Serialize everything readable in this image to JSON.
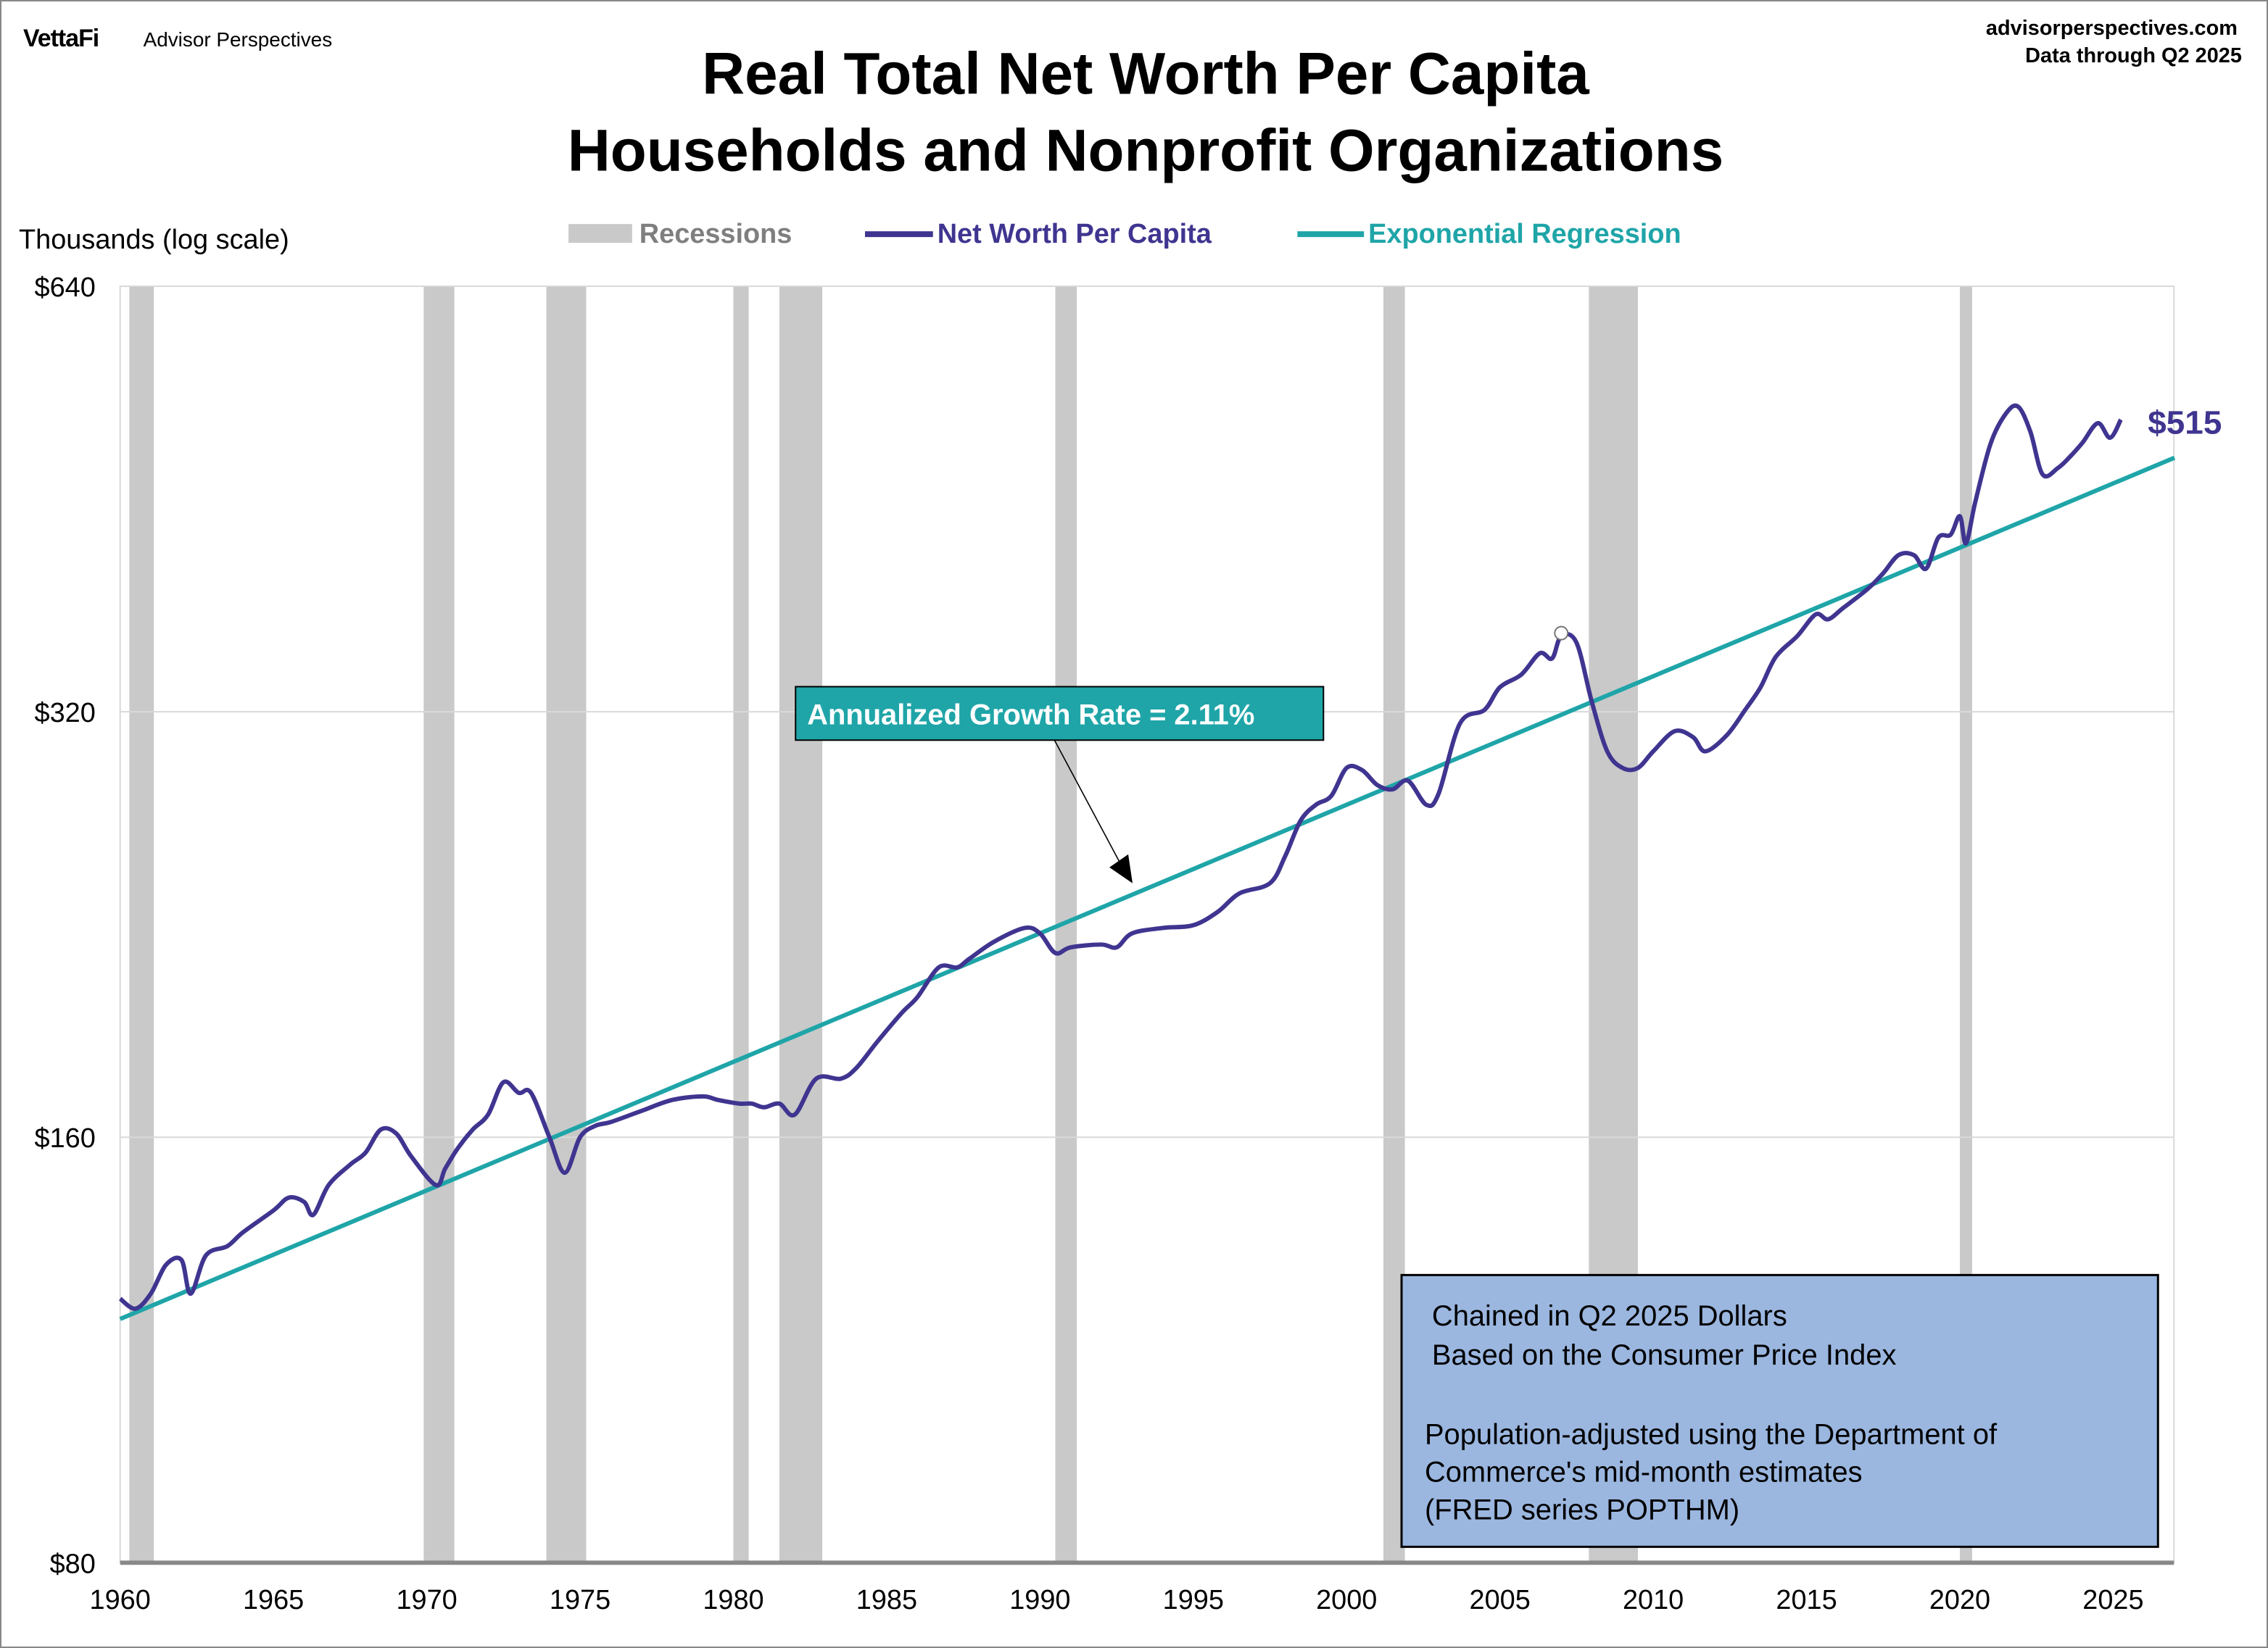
{
  "header": {
    "brand": "VettaFi",
    "brand_sub": "Advisor Perspectives",
    "site": "advisorperspectives.com",
    "data_through": "Data through Q2 2025"
  },
  "chart_data": {
    "type": "line",
    "title": "Real Total Net Worth Per Capita",
    "subtitle": "Households and Nonprofit Organizations",
    "ylabel": "Thousands (log scale)",
    "y_scale": "log2",
    "ylim": [
      80,
      640
    ],
    "y_ticks": [
      80,
      160,
      320,
      640
    ],
    "y_tick_labels": [
      "$80",
      "$160",
      "$320",
      "$640"
    ],
    "xlim": [
      1960,
      2027
    ],
    "x_ticks": [
      1960,
      1965,
      1970,
      1975,
      1980,
      1985,
      1990,
      1995,
      2000,
      2005,
      2010,
      2015,
      2020,
      2025
    ],
    "x_tick_labels": [
      "1960",
      "1965",
      "1970",
      "1975",
      "1980",
      "1985",
      "1990",
      "1995",
      "2000",
      "2005",
      "2010",
      "2015",
      "2020",
      "2025"
    ],
    "grid": "horizontal",
    "legend": {
      "placement": "top",
      "items": [
        {
          "label": "Recessions",
          "color": "#c9c9c9"
        },
        {
          "label": "Net Worth Per Capita",
          "color": "#3f3590"
        },
        {
          "label": "Exponential Regression",
          "color": "#1fa5a8"
        }
      ]
    },
    "recessions": [
      [
        1960.3,
        1961.1
      ],
      [
        1969.9,
        1970.9
      ],
      [
        1973.9,
        1975.2
      ],
      [
        1980.0,
        1980.5
      ],
      [
        1981.5,
        1982.9
      ],
      [
        1990.5,
        1991.2
      ],
      [
        2001.2,
        2001.9
      ],
      [
        2007.9,
        2009.5
      ],
      [
        2020.0,
        2020.4
      ]
    ],
    "series": [
      {
        "name": "Net Worth Per Capita",
        "color": "#3f3590",
        "x": [
          1960.0,
          1960.5,
          1961.0,
          1961.5,
          1962.0,
          1962.3,
          1962.8,
          1963.5,
          1964.0,
          1965.0,
          1965.5,
          1966.0,
          1966.3,
          1966.8,
          1967.5,
          1968.0,
          1968.5,
          1969.0,
          1969.5,
          1970.3,
          1970.6,
          1971.0,
          1971.5,
          1972.0,
          1972.5,
          1973.0,
          1973.4,
          1974.0,
          1974.5,
          1975.0,
          1975.5,
          1976.0,
          1977.0,
          1978.0,
          1979.0,
          1979.5,
          1980.2,
          1980.6,
          1981.0,
          1981.5,
          1982.0,
          1982.7,
          1983.5,
          1984.0,
          1984.7,
          1985.5,
          1986.0,
          1986.7,
          1987.3,
          1987.7,
          1988.5,
          1989.5,
          1990.0,
          1990.5,
          1991.0,
          1992.0,
          1992.5,
          1993.0,
          1994.0,
          1995.0,
          1995.8,
          1996.5,
          1997.5,
          1998.0,
          1998.5,
          1999.0,
          1999.5,
          2000.0,
          2000.5,
          2001.0,
          2001.5,
          2002.0,
          2002.6,
          2003.0,
          2003.7,
          2004.5,
          2005.0,
          2005.7,
          2006.3,
          2006.7,
          2007.0,
          2007.5,
          2008.0,
          2008.5,
          2009.0,
          2009.5,
          2010.0,
          2010.7,
          2011.3,
          2011.7,
          2012.4,
          2013.0,
          2013.5,
          2014.0,
          2014.7,
          2015.3,
          2015.7,
          2016.2,
          2017.0,
          2017.5,
          2018.0,
          2018.5,
          2018.9,
          2019.3,
          2019.7,
          2020.0,
          2020.2,
          2020.5,
          2021.0,
          2021.5,
          2021.9,
          2022.3,
          2022.7,
          2023.2,
          2023.6,
          2024.0,
          2024.5,
          2024.9,
          2025.25
        ],
        "values": [
          123,
          121,
          124,
          130,
          131,
          124,
          132,
          134,
          137,
          142,
          145,
          144,
          141,
          148,
          153,
          156,
          162,
          161,
          155,
          148,
          152,
          157,
          162,
          166,
          175,
          172,
          172,
          160,
          151,
          160,
          163,
          164,
          167,
          170,
          171,
          170,
          169,
          169,
          168,
          169,
          166,
          176,
          176,
          179,
          187,
          196,
          201,
          211,
          211,
          214,
          220,
          225,
          223,
          216,
          218,
          219,
          218,
          223,
          225,
          226,
          231,
          238,
          242,
          253,
          268,
          275,
          279,
          292,
          291,
          284,
          282,
          286,
          275,
          280,
          314,
          321,
          333,
          340,
          352,
          349,
          362,
          358,
          325,
          300,
          292,
          292,
          300,
          310,
          307,
          300,
          308,
          321,
          333,
          350,
          362,
          375,
          372,
          379,
          391,
          401,
          413,
          413,
          404,
          425,
          427,
          440,
          421,
          450,
          495,
          520,
          526,
          505,
          471,
          476,
          485,
          496,
          512,
          500,
          515
        ]
      },
      {
        "name": "Exponential Regression",
        "color": "#1fa5a8",
        "x": [
          1960,
          2027
        ],
        "values": [
          119,
          484
        ]
      }
    ],
    "annotations": {
      "last_value_label": "$515",
      "growth_label": "Annualized Growth Rate = 2.11%",
      "note_lines_1": [
        "Chained in Q2 2025 Dollars",
        "Based on the Consumer Price Index"
      ],
      "note_lines_2": [
        "Population-adjusted using the Department of",
        "Commerce's mid-month estimates",
        "(FRED series POPTHM)"
      ],
      "growth_box_color": "#1fa5a8",
      "note_box_color": "#9bb7e0"
    }
  }
}
